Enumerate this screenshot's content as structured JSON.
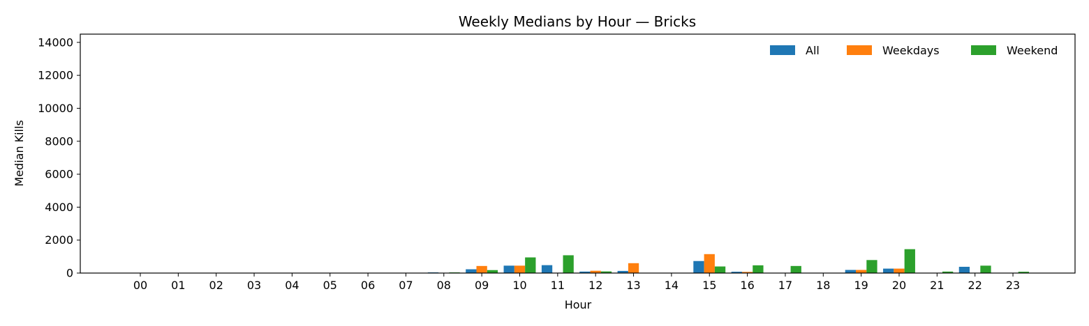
{
  "chart_data": {
    "type": "bar",
    "title": "Weekly Medians by Hour — Bricks",
    "xlabel": "Hour",
    "ylabel": "Median Kills",
    "ylim": [
      0,
      14500
    ],
    "yticks": [
      0,
      2000,
      4000,
      6000,
      8000,
      10000,
      12000,
      14000
    ],
    "grid": false,
    "legend_position": "top-right",
    "categories": [
      "00",
      "01",
      "02",
      "03",
      "04",
      "05",
      "06",
      "07",
      "08",
      "09",
      "10",
      "11",
      "12",
      "13",
      "14",
      "15",
      "16",
      "17",
      "18",
      "19",
      "20",
      "21",
      "22",
      "23"
    ],
    "series": [
      {
        "name": "All",
        "color": "#1f77b4",
        "values": [
          0,
          0,
          0,
          0,
          0,
          0,
          0,
          0,
          40,
          230,
          450,
          480,
          90,
          130,
          0,
          730,
          80,
          0,
          0,
          190,
          270,
          0,
          380,
          0
        ]
      },
      {
        "name": "Weekdays",
        "color": "#ff7f0e",
        "values": [
          0,
          0,
          0,
          0,
          0,
          0,
          0,
          0,
          0,
          430,
          450,
          0,
          140,
          600,
          0,
          1150,
          70,
          0,
          0,
          190,
          270,
          0,
          0,
          0
        ]
      },
      {
        "name": "Weekend",
        "color": "#2ca02c",
        "values": [
          0,
          0,
          0,
          0,
          0,
          0,
          0,
          0,
          40,
          180,
          950,
          1080,
          100,
          0,
          0,
          400,
          470,
          430,
          0,
          790,
          1450,
          90,
          450,
          80
        ]
      }
    ]
  }
}
